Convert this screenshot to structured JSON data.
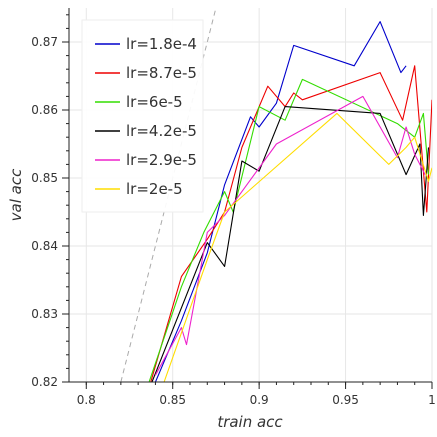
{
  "chart_data": {
    "type": "line",
    "title": "",
    "xlabel": "train acc",
    "ylabel": "val acc",
    "xlim": [
      0.79,
      1.0
    ],
    "ylim": [
      0.82,
      0.875
    ],
    "x_ticks": [
      0.8,
      0.85,
      0.9,
      0.95,
      1
    ],
    "x_tick_labels": [
      "0.8",
      "0.85",
      "0.9",
      "0.95",
      "1"
    ],
    "y_ticks": [
      0.82,
      0.83,
      0.84,
      0.85,
      0.86,
      0.87
    ],
    "y_tick_labels": [
      "0.82",
      "0.83",
      "0.84",
      "0.85",
      "0.86",
      "0.87"
    ],
    "grid": true,
    "legend_position": "top-left",
    "reference_line": {
      "style": "dashed",
      "color": "#aaaaaa",
      "points": [
        [
          0.82,
          0.82
        ],
        [
          0.875,
          0.875
        ]
      ]
    },
    "series": [
      {
        "name": "lr=1.8e-4",
        "color": "#0000cc",
        "points": [
          [
            0.835,
            0.817
          ],
          [
            0.855,
            0.829
          ],
          [
            0.87,
            0.839
          ],
          [
            0.88,
            0.849
          ],
          [
            0.895,
            0.859
          ],
          [
            0.9,
            0.8575
          ],
          [
            0.91,
            0.861
          ],
          [
            0.92,
            0.8695
          ],
          [
            0.955,
            0.8665
          ],
          [
            0.97,
            0.873
          ],
          [
            0.982,
            0.8655
          ],
          [
            0.985,
            0.8665
          ]
        ]
      },
      {
        "name": "lr=8.7e-5",
        "color": "#ee0000",
        "points": [
          [
            0.835,
            0.818
          ],
          [
            0.855,
            0.8355
          ],
          [
            0.87,
            0.841
          ],
          [
            0.88,
            0.845
          ],
          [
            0.89,
            0.8545
          ],
          [
            0.905,
            0.8635
          ],
          [
            0.915,
            0.8605
          ],
          [
            0.92,
            0.8625
          ],
          [
            0.925,
            0.8615
          ],
          [
            0.97,
            0.8655
          ],
          [
            0.983,
            0.8585
          ],
          [
            0.99,
            0.8665
          ],
          [
            0.997,
            0.845
          ],
          [
            1.0,
            0.8615
          ]
        ]
      },
      {
        "name": "lr=6e-5",
        "color": "#33dd00",
        "points": [
          [
            0.835,
            0.819
          ],
          [
            0.855,
            0.834
          ],
          [
            0.868,
            0.842
          ],
          [
            0.88,
            0.848
          ],
          [
            0.885,
            0.845
          ],
          [
            0.9,
            0.8605
          ],
          [
            0.915,
            0.8585
          ],
          [
            0.925,
            0.8645
          ],
          [
            0.98,
            0.858
          ],
          [
            0.99,
            0.856
          ],
          [
            0.995,
            0.8595
          ],
          [
            0.998,
            0.8505
          ]
        ]
      },
      {
        "name": "lr=4.2e-5",
        "color": "#000000",
        "points": [
          [
            0.838,
            0.82
          ],
          [
            0.87,
            0.8405
          ],
          [
            0.88,
            0.837
          ],
          [
            0.89,
            0.8525
          ],
          [
            0.9,
            0.851
          ],
          [
            0.915,
            0.8605
          ],
          [
            0.97,
            0.8595
          ],
          [
            0.985,
            0.8505
          ],
          [
            0.993,
            0.855
          ],
          [
            0.995,
            0.8445
          ],
          [
            0.998,
            0.8545
          ]
        ]
      },
      {
        "name": "lr=2.9e-5",
        "color": "#ee22cc",
        "points": [
          [
            0.84,
            0.821
          ],
          [
            0.855,
            0.828
          ],
          [
            0.858,
            0.8255
          ],
          [
            0.87,
            0.842
          ],
          [
            0.88,
            0.8445
          ],
          [
            0.89,
            0.848
          ],
          [
            0.91,
            0.855
          ],
          [
            0.96,
            0.862
          ],
          [
            0.98,
            0.853
          ],
          [
            0.985,
            0.8575
          ],
          [
            0.99,
            0.8535
          ],
          [
            0.996,
            0.8505
          ]
        ]
      },
      {
        "name": "lr=2e-5",
        "color": "#ffdd00",
        "points": [
          [
            0.845,
            0.82
          ],
          [
            0.87,
            0.838
          ],
          [
            0.88,
            0.845
          ],
          [
            0.945,
            0.8595
          ],
          [
            0.975,
            0.852
          ],
          [
            0.985,
            0.8545
          ],
          [
            0.99,
            0.856
          ],
          [
            0.998,
            0.8495
          ],
          [
            1.0,
            0.8515
          ]
        ]
      }
    ]
  }
}
